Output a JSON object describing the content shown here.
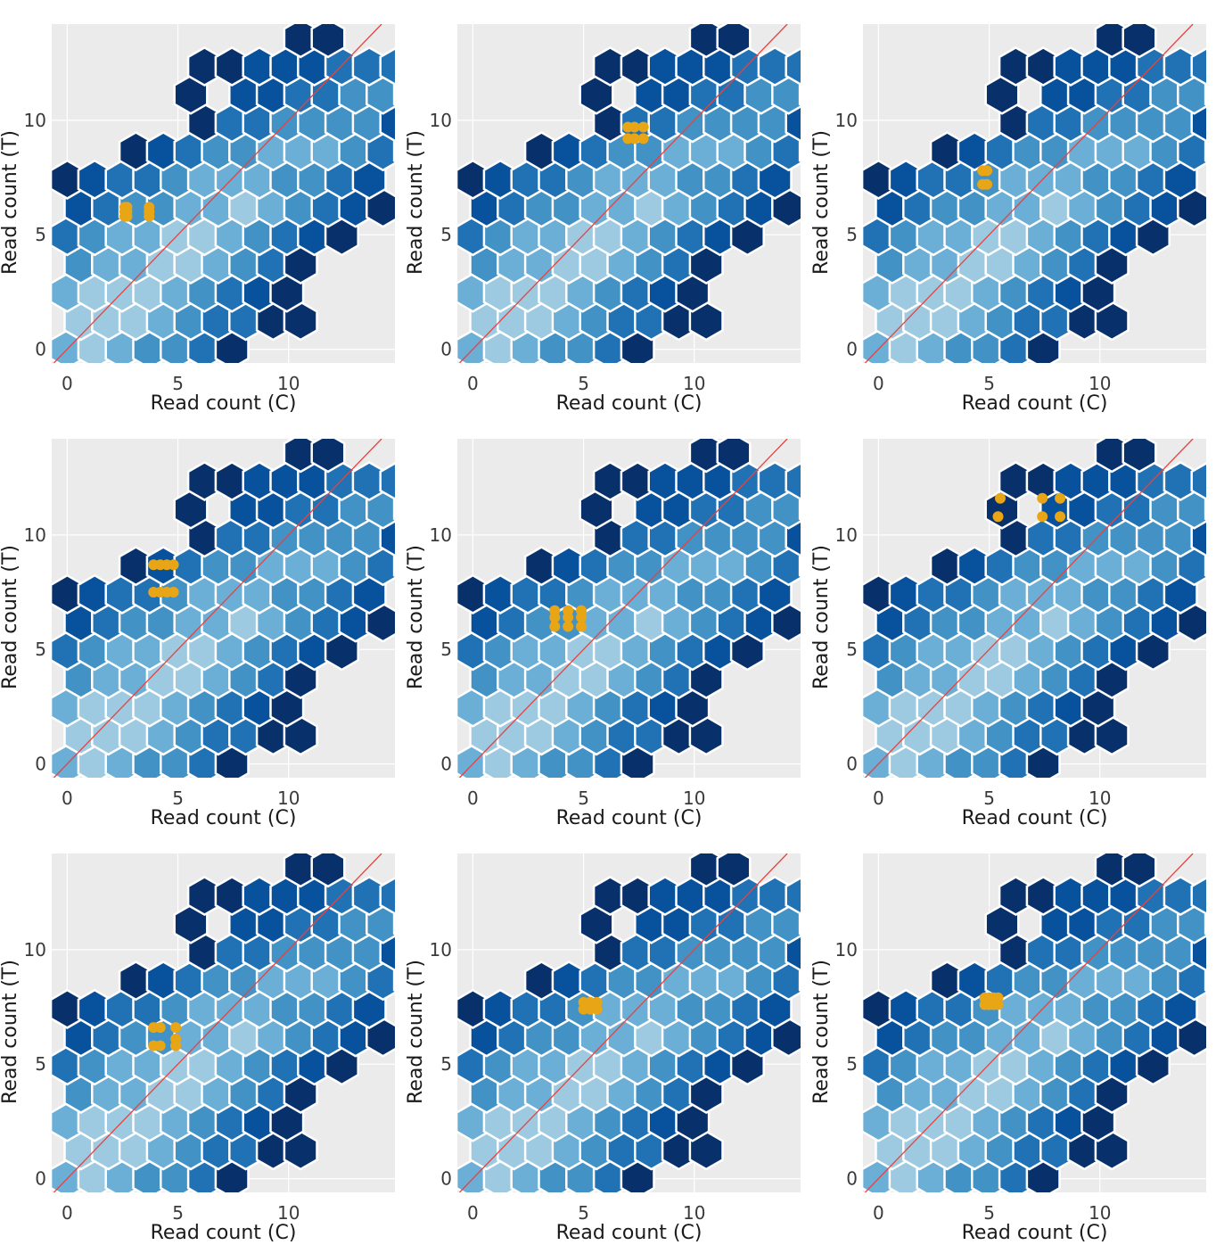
{
  "chart_data": [
    {
      "type": "hexbin",
      "xlabel": "Read count (C)",
      "ylabel": "Read count (T)",
      "xticks": [
        0,
        5,
        10
      ],
      "yticks": [
        0,
        5,
        10
      ],
      "xlim": [
        -0.7,
        14.8
      ],
      "ylim": [
        -0.6,
        14.2
      ],
      "reference_line": "y = x",
      "grid": true,
      "highlight_points": [
        [
          2.6,
          5.8
        ],
        [
          2.6,
          6.0
        ],
        [
          2.6,
          6.2
        ],
        [
          2.7,
          5.8
        ],
        [
          2.7,
          6.0
        ],
        [
          2.7,
          6.2
        ],
        [
          3.7,
          5.8
        ],
        [
          3.7,
          6.0
        ],
        [
          3.7,
          6.2
        ]
      ]
    },
    {
      "type": "hexbin",
      "xlabel": "Read count (C)",
      "ylabel": "Read count (T)",
      "xticks": [
        0,
        5,
        10
      ],
      "yticks": [
        0,
        5,
        10
      ],
      "xlim": [
        -0.7,
        14.8
      ],
      "ylim": [
        -0.6,
        14.2
      ],
      "reference_line": "y = x",
      "grid": true,
      "highlight_points": [
        [
          7.0,
          9.2
        ],
        [
          7.0,
          9.7
        ],
        [
          7.3,
          9.2
        ],
        [
          7.3,
          9.7
        ],
        [
          7.7,
          9.2
        ],
        [
          7.7,
          9.7
        ]
      ]
    },
    {
      "type": "hexbin",
      "xlabel": "Read count (C)",
      "ylabel": "Read count (T)",
      "xticks": [
        0,
        5,
        10
      ],
      "yticks": [
        0,
        5,
        10
      ],
      "xlim": [
        -0.7,
        14.8
      ],
      "ylim": [
        -0.6,
        14.2
      ],
      "reference_line": "y = x",
      "grid": true,
      "highlight_points": [
        [
          4.7,
          7.2
        ],
        [
          4.7,
          7.8
        ],
        [
          4.9,
          7.2
        ],
        [
          4.9,
          7.8
        ]
      ]
    },
    {
      "type": "hexbin",
      "xlabel": "Read count (C)",
      "ylabel": "Read count (T)",
      "xticks": [
        0,
        5,
        10
      ],
      "yticks": [
        0,
        5,
        10
      ],
      "xlim": [
        -0.7,
        14.8
      ],
      "ylim": [
        -0.6,
        14.2
      ],
      "reference_line": "y = x",
      "grid": true,
      "highlight_points": [
        [
          3.9,
          7.5
        ],
        [
          4.2,
          7.5
        ],
        [
          4.5,
          7.5
        ],
        [
          4.8,
          7.5
        ],
        [
          3.9,
          8.7
        ],
        [
          4.2,
          8.7
        ],
        [
          4.5,
          8.7
        ],
        [
          4.8,
          8.7
        ]
      ]
    },
    {
      "type": "hexbin",
      "xlabel": "Read count (C)",
      "ylabel": "Read count (T)",
      "xticks": [
        0,
        5,
        10
      ],
      "yticks": [
        0,
        5,
        10
      ],
      "xlim": [
        -0.7,
        14.8
      ],
      "ylim": [
        -0.6,
        14.2
      ],
      "reference_line": "y = x",
      "grid": true,
      "highlight_points": [
        [
          3.7,
          6.0
        ],
        [
          3.7,
          6.4
        ],
        [
          3.7,
          6.7
        ],
        [
          4.3,
          6.0
        ],
        [
          4.3,
          6.4
        ],
        [
          4.3,
          6.7
        ],
        [
          4.9,
          6.0
        ],
        [
          4.9,
          6.4
        ],
        [
          4.9,
          6.7
        ]
      ]
    },
    {
      "type": "hexbin",
      "xlabel": "Read count (C)",
      "ylabel": "Read count (T)",
      "xticks": [
        0,
        5,
        10
      ],
      "yticks": [
        0,
        5,
        10
      ],
      "xlim": [
        -0.7,
        14.8
      ],
      "ylim": [
        -0.6,
        14.2
      ],
      "reference_line": "y = x",
      "grid": true,
      "highlight_points": [
        [
          5.4,
          10.8
        ],
        [
          5.5,
          11.6
        ],
        [
          7.4,
          10.8
        ],
        [
          7.4,
          11.6
        ],
        [
          8.2,
          10.8
        ],
        [
          8.2,
          11.6
        ]
      ]
    },
    {
      "type": "hexbin",
      "xlabel": "Read count (C)",
      "ylabel": "Read count (T)",
      "xticks": [
        0,
        5,
        10
      ],
      "yticks": [
        0,
        5,
        10
      ],
      "xlim": [
        -0.7,
        14.8
      ],
      "ylim": [
        -0.6,
        14.2
      ],
      "reference_line": "y = x",
      "grid": true,
      "highlight_points": [
        [
          3.9,
          5.8
        ],
        [
          4.2,
          5.8
        ],
        [
          3.9,
          6.6
        ],
        [
          4.2,
          6.6
        ],
        [
          4.9,
          5.8
        ],
        [
          4.9,
          6.1
        ],
        [
          4.9,
          6.6
        ]
      ]
    },
    {
      "type": "hexbin",
      "xlabel": "Read count (C)",
      "ylabel": "Read count (T)",
      "xticks": [
        0,
        5,
        10
      ],
      "yticks": [
        0,
        5,
        10
      ],
      "xlim": [
        -0.7,
        14.8
      ],
      "ylim": [
        -0.6,
        14.2
      ],
      "reference_line": "y = x",
      "grid": true,
      "highlight_points": [
        [
          5.0,
          7.4
        ],
        [
          5.0,
          7.7
        ],
        [
          5.3,
          7.4
        ],
        [
          5.3,
          7.7
        ],
        [
          5.6,
          7.4
        ],
        [
          5.6,
          7.7
        ]
      ]
    },
    {
      "type": "hexbin",
      "xlabel": "Read count (C)",
      "ylabel": "Read count (T)",
      "xticks": [
        0,
        5,
        10
      ],
      "yticks": [
        0,
        5,
        10
      ],
      "xlim": [
        -0.7,
        14.8
      ],
      "ylim": [
        -0.6,
        14.2
      ],
      "reference_line": "y = x",
      "grid": true,
      "highlight_points": [
        [
          4.8,
          7.6
        ],
        [
          5.0,
          7.6
        ],
        [
          5.2,
          7.6
        ],
        [
          5.4,
          7.6
        ],
        [
          4.8,
          7.9
        ],
        [
          5.0,
          7.9
        ],
        [
          5.2,
          7.9
        ],
        [
          5.4,
          7.9
        ]
      ]
    }
  ],
  "hex_palette": [
    "#9ecae1",
    "#6baed6",
    "#4292c6",
    "#2171b5",
    "#08519c",
    "#08306b"
  ],
  "colors": {
    "panel_bg": "#ebebeb",
    "grid": "#ffffff",
    "hex_edge": "#ffffff",
    "reference_line": "#e8423e",
    "highlight": "#e8a516"
  }
}
